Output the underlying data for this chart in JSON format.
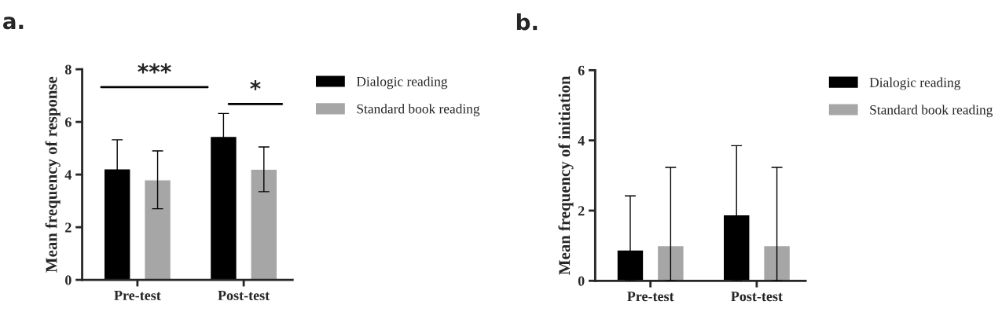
{
  "chart_data": [
    {
      "type": "bar",
      "title": "a.",
      "ylabel": "Mean frequency of response",
      "categories": [
        "Pre-test",
        "Post-test"
      ],
      "ylim": [
        0,
        8
      ],
      "yticks": [
        0,
        2,
        4,
        6,
        8
      ],
      "legend": "right",
      "grid": false,
      "series": [
        {
          "name": "Dialogic reading",
          "color": "#000000",
          "values": [
            4.22,
            5.45
          ],
          "errors": [
            1.1,
            0.87
          ]
        },
        {
          "name": "Standard book reading",
          "color": "#a6a6a6",
          "values": [
            3.8,
            4.2
          ],
          "errors": [
            1.1,
            0.85
          ]
        }
      ],
      "annotations": [
        "***",
        "*"
      ]
    },
    {
      "type": "bar",
      "title": "b.",
      "ylabel": "Mean frequency of initiation",
      "categories": [
        "Pre-test",
        "Post-test"
      ],
      "ylim": [
        0,
        6
      ],
      "yticks": [
        0,
        2,
        4,
        6
      ],
      "legend": "right",
      "grid": false,
      "series": [
        {
          "name": "Dialogic reading",
          "color": "#000000",
          "values": [
            0.88,
            1.88
          ],
          "errors": [
            [
              0,
              2.42
            ],
            [
              0,
              3.85
            ]
          ]
        },
        {
          "name": "Standard book reading",
          "color": "#a6a6a6",
          "values": [
            1.0,
            1.0
          ],
          "errors": [
            [
              0,
              3.23
            ],
            [
              0,
              3.23
            ]
          ]
        }
      ]
    }
  ]
}
